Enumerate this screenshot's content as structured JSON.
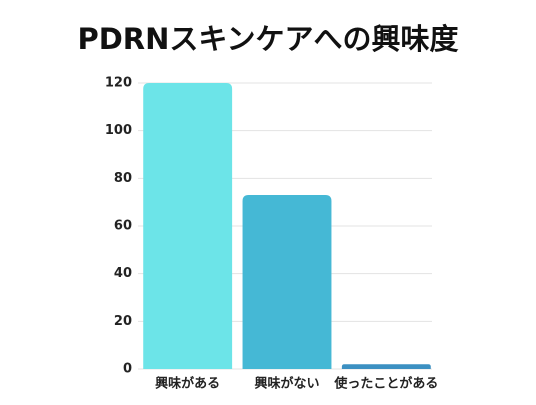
{
  "chart_data": {
    "type": "bar",
    "title": "PDRNスキンケアへの興味度",
    "categories": [
      "興味がある",
      "興味がない",
      "使ったことがある"
    ],
    "values": [
      120,
      73,
      2
    ],
    "colors": [
      "#6ce4e8",
      "#45b8d5",
      "#3c90c2"
    ],
    "ylim": [
      0,
      120
    ],
    "yticks": [
      0,
      20,
      40,
      60,
      80,
      100,
      120
    ],
    "grid": true
  }
}
